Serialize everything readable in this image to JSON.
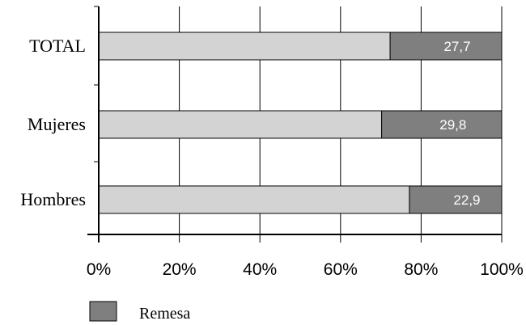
{
  "chart_data": {
    "type": "bar",
    "orientation": "horizontal",
    "stacked": true,
    "normalized_percent": true,
    "categories": [
      "TOTAL",
      "Mujeres",
      "Hombres"
    ],
    "series": [
      {
        "values": [
          72.3,
          70.2,
          77.1
        ],
        "color": "#d3d3d3"
      },
      {
        "name": "Remesa",
        "values": [
          27.7,
          29.8,
          22.9
        ],
        "color": "#7f7f7f"
      }
    ],
    "data_labels": [
      "27,7",
      "29,8",
      "22,9"
    ],
    "x_ticks": [
      "0%",
      "20%",
      "40%",
      "60%",
      "80%",
      "100%"
    ],
    "xlim": [
      0,
      100
    ],
    "grid": true,
    "legend": {
      "position": "bottom-left",
      "entries": [
        "Remesa"
      ]
    }
  }
}
